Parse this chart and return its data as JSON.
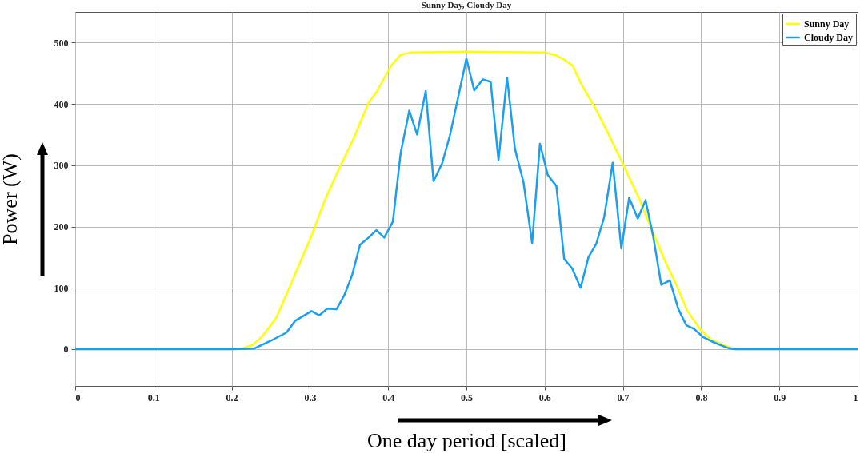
{
  "chart_data": {
    "type": "line",
    "title": "Sunny Day, Cloudy Day",
    "xlabel": "One day period [scaled]",
    "ylabel": "Power (W)",
    "xlim": [
      0,
      1
    ],
    "xticks": [
      0,
      0.1,
      0.2,
      0.3,
      0.4,
      0.5,
      0.6,
      0.7,
      0.8,
      0.9,
      1
    ],
    "ylim": [
      -60,
      550
    ],
    "yticks": [
      0,
      100,
      200,
      300,
      400,
      500
    ],
    "grid": true,
    "legend": "top right",
    "line_style": "solid",
    "marker": "none",
    "series": [
      {
        "name": "Sunny Day",
        "color": "#ffff00",
        "x": [
          0,
          0.1,
          0.21,
          0.227,
          0.24,
          0.257,
          0.274,
          0.291,
          0.302,
          0.319,
          0.336,
          0.356,
          0.375,
          0.385,
          0.404,
          0.416,
          0.429,
          0.5,
          0.6,
          0.615,
          0.625,
          0.636,
          0.646,
          0.666,
          0.68,
          0.7,
          0.721,
          0.738,
          0.755,
          0.769,
          0.782,
          0.799,
          0.813,
          0.83,
          0.843,
          0.9,
          1
        ],
        "values": [
          0,
          0,
          0,
          7,
          22,
          51,
          101,
          152,
          185,
          243,
          291,
          344,
          402,
          419,
          463,
          480,
          484,
          485,
          484,
          479,
          472,
          462,
          434,
          390,
          355,
          302,
          245,
          192,
          140,
          103,
          63,
          32,
          15,
          6,
          0,
          0,
          0
        ]
      },
      {
        "name": "Cloudy Day",
        "color": "#1a9ff0",
        "x": [
          0,
          0.1,
          0.2,
          0.229,
          0.249,
          0.27,
          0.281,
          0.302,
          0.312,
          0.322,
          0.334,
          0.344,
          0.354,
          0.364,
          0.375,
          0.385,
          0.395,
          0.406,
          0.416,
          0.427,
          0.437,
          0.448,
          0.458,
          0.469,
          0.479,
          0.489,
          0.5,
          0.51,
          0.521,
          0.531,
          0.541,
          0.552,
          0.562,
          0.573,
          0.584,
          0.594,
          0.604,
          0.615,
          0.625,
          0.635,
          0.646,
          0.656,
          0.666,
          0.676,
          0.687,
          0.698,
          0.708,
          0.719,
          0.729,
          0.739,
          0.749,
          0.76,
          0.771,
          0.781,
          0.791,
          0.802,
          0.813,
          0.824,
          0.834,
          0.843,
          0.9,
          1
        ],
        "values": [
          0,
          0,
          0,
          1,
          13,
          27,
          46,
          62,
          55,
          66,
          65,
          88,
          121,
          170,
          182,
          194,
          182,
          208,
          320,
          389,
          350,
          421,
          274,
          303,
          349,
          408,
          474,
          422,
          440,
          436,
          308,
          443,
          327,
          272,
          173,
          335,
          284,
          266,
          147,
          132,
          100,
          150,
          172,
          215,
          304,
          164,
          247,
          213,
          243,
          182,
          105,
          112,
          65,
          39,
          33,
          20,
          13,
          7,
          2,
          0,
          0,
          0
        ]
      }
    ]
  }
}
